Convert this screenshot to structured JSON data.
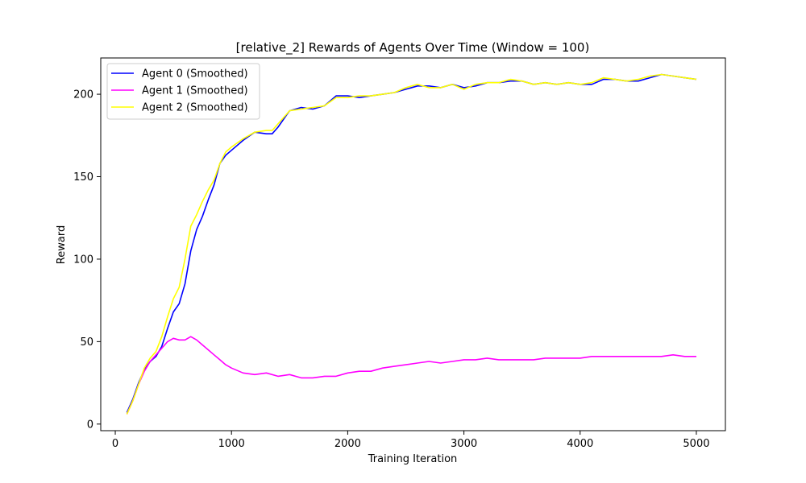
{
  "chart_data": {
    "type": "line",
    "title": "[relative_2] Rewards of Agents Over Time (Window = 100)",
    "xlabel": "Training Iteration",
    "ylabel": "Reward",
    "xlim": [
      -125,
      5250
    ],
    "ylim": [
      -4,
      222
    ],
    "xticks": [
      0,
      1000,
      2000,
      3000,
      4000,
      5000
    ],
    "yticks": [
      0,
      50,
      100,
      150,
      200
    ],
    "grid": false,
    "legend_position": "upper-left",
    "series": [
      {
        "name": "Agent 0 (Smoothed)",
        "color": "#0000ff",
        "x": [
          100,
          150,
          200,
          250,
          300,
          350,
          400,
          450,
          500,
          550,
          600,
          650,
          700,
          750,
          800,
          850,
          900,
          950,
          1000,
          1100,
          1200,
          1300,
          1350,
          1400,
          1500,
          1600,
          1700,
          1800,
          1900,
          2000,
          2100,
          2200,
          2300,
          2400,
          2500,
          2600,
          2700,
          2800,
          2900,
          3000,
          3100,
          3200,
          3300,
          3400,
          3500,
          3600,
          3700,
          3800,
          3900,
          4000,
          4100,
          4200,
          4300,
          4400,
          4500,
          4600,
          4700,
          4800,
          4900,
          5000
        ],
        "y": [
          7,
          15,
          25,
          33,
          38,
          41,
          47,
          58,
          68,
          73,
          85,
          105,
          118,
          126,
          136,
          145,
          158,
          163,
          166,
          172,
          177,
          176,
          176,
          180,
          190,
          192,
          191,
          193,
          199,
          199,
          198,
          199,
          200,
          201,
          203,
          205,
          205,
          204,
          206,
          204,
          205,
          207,
          207,
          208,
          208,
          206,
          207,
          206,
          207,
          206,
          206,
          209,
          209,
          208,
          208,
          210,
          212,
          211,
          210,
          209
        ]
      },
      {
        "name": "Agent 1 (Smoothed)",
        "color": "#ff00ff",
        "x": [
          100,
          150,
          200,
          250,
          300,
          350,
          400,
          450,
          500,
          550,
          600,
          650,
          700,
          750,
          800,
          850,
          900,
          950,
          1000,
          1100,
          1200,
          1300,
          1400,
          1500,
          1600,
          1700,
          1800,
          1900,
          2000,
          2100,
          2200,
          2300,
          2400,
          2500,
          2600,
          2700,
          2800,
          2900,
          3000,
          3100,
          3200,
          3300,
          3400,
          3500,
          3600,
          3700,
          3800,
          3900,
          4000,
          4100,
          4200,
          4300,
          4400,
          4500,
          4600,
          4700,
          4800,
          4900,
          5000
        ],
        "y": [
          6,
          14,
          24,
          32,
          38,
          42,
          46,
          50,
          52,
          51,
          51,
          53,
          51,
          48,
          45,
          42,
          39,
          36,
          34,
          31,
          30,
          31,
          29,
          30,
          28,
          28,
          29,
          29,
          31,
          32,
          32,
          34,
          35,
          36,
          37,
          38,
          37,
          38,
          39,
          39,
          40,
          39,
          39,
          39,
          39,
          40,
          40,
          40,
          40,
          41,
          41,
          41,
          41,
          41,
          41,
          41,
          42,
          41,
          41
        ]
      },
      {
        "name": "Agent 2 (Smoothed)",
        "color": "#ffff00",
        "x": [
          100,
          150,
          200,
          250,
          300,
          350,
          400,
          450,
          500,
          550,
          600,
          650,
          700,
          750,
          800,
          850,
          900,
          950,
          1000,
          1100,
          1200,
          1300,
          1350,
          1400,
          1500,
          1600,
          1700,
          1800,
          1900,
          2000,
          2100,
          2200,
          2300,
          2400,
          2500,
          2600,
          2700,
          2800,
          2900,
          3000,
          3100,
          3200,
          3300,
          3400,
          3500,
          3600,
          3700,
          3800,
          3900,
          4000,
          4100,
          4200,
          4300,
          4400,
          4500,
          4600,
          4700,
          4800,
          4900,
          5000
        ],
        "y": [
          6,
          14,
          24,
          34,
          40,
          44,
          53,
          65,
          76,
          83,
          100,
          120,
          127,
          135,
          142,
          148,
          158,
          165,
          168,
          173,
          177,
          178,
          178,
          182,
          190,
          191,
          192,
          193,
          198,
          198,
          199,
          199,
          200,
          201,
          204,
          206,
          204,
          204,
          206,
          203,
          206,
          207,
          207,
          209,
          208,
          206,
          207,
          206,
          207,
          206,
          207,
          210,
          209,
          208,
          209,
          211,
          212,
          211,
          210,
          209
        ]
      }
    ]
  }
}
